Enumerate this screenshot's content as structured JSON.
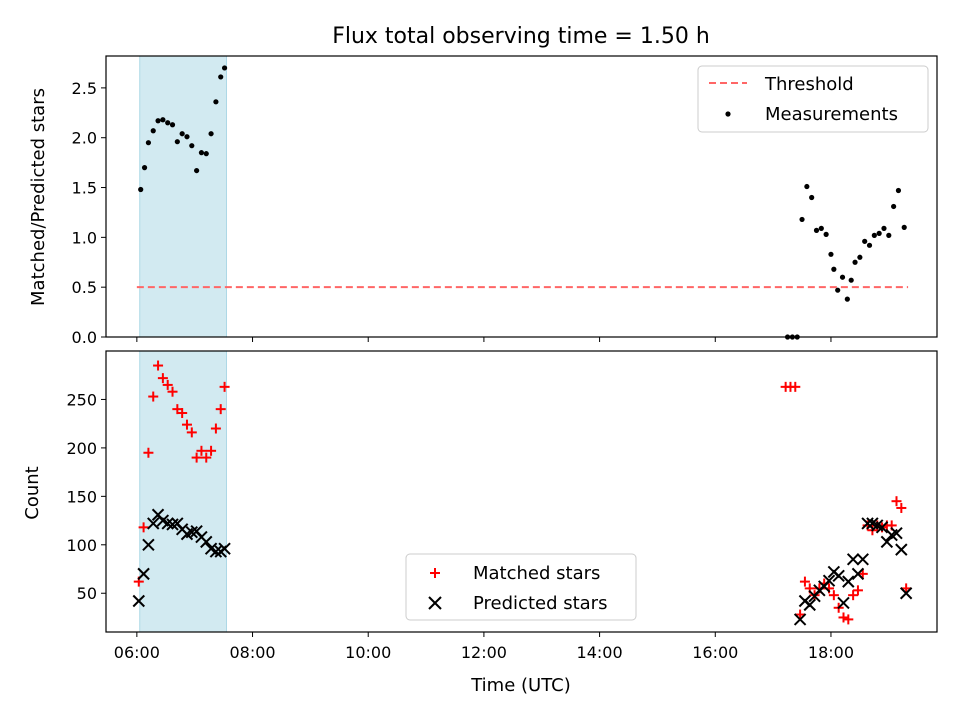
{
  "title": "Flux total observing time = 1.50 h",
  "colors": {
    "shade": "#add8e6",
    "threshold": "#ff6666",
    "measurements": "#000000",
    "matched": "#ff0000",
    "predicted": "#000000"
  },
  "chart_data": [
    {
      "type": "scatter",
      "ylabel": "Matched/Predicted stars",
      "ylim": [
        0,
        2.82
      ],
      "yticks": [
        "0.0",
        "0.5",
        "1.0",
        "1.5",
        "2.0",
        "2.5"
      ],
      "grid": false,
      "legend_position": "upper right",
      "shaded_interval": [
        "06:03",
        "07:33"
      ],
      "threshold": {
        "name": "Threshold",
        "value": 0.5,
        "x_range": [
          "06:00",
          "19:20"
        ]
      },
      "series": [
        {
          "name": "Measurements",
          "points": [
            [
              "06:04",
              1.48
            ],
            [
              "06:08",
              1.7
            ],
            [
              "06:12",
              1.95
            ],
            [
              "06:17",
              2.07
            ],
            [
              "06:22",
              2.17
            ],
            [
              "06:27",
              2.18
            ],
            [
              "06:32",
              2.15
            ],
            [
              "06:37",
              2.13
            ],
            [
              "06:42",
              1.96
            ],
            [
              "06:47",
              2.04
            ],
            [
              "06:52",
              2.01
            ],
            [
              "06:57",
              1.92
            ],
            [
              "07:02",
              1.67
            ],
            [
              "07:07",
              1.85
            ],
            [
              "07:12",
              1.84
            ],
            [
              "07:17",
              2.04
            ],
            [
              "07:22",
              2.36
            ],
            [
              "07:27",
              2.61
            ],
            [
              "07:31",
              2.7
            ],
            [
              "17:15",
              0.0
            ],
            [
              "17:20",
              0.0
            ],
            [
              "17:25",
              0.0
            ],
            [
              "17:30",
              1.18
            ],
            [
              "17:35",
              1.51
            ],
            [
              "17:40",
              1.4
            ],
            [
              "17:45",
              1.07
            ],
            [
              "17:50",
              1.09
            ],
            [
              "17:55",
              1.03
            ],
            [
              "18:00",
              0.83
            ],
            [
              "18:03",
              0.68
            ],
            [
              "18:07",
              0.47
            ],
            [
              "18:12",
              0.6
            ],
            [
              "18:17",
              0.38
            ],
            [
              "18:21",
              0.57
            ],
            [
              "18:25",
              0.75
            ],
            [
              "18:30",
              0.8
            ],
            [
              "18:35",
              0.96
            ],
            [
              "18:40",
              0.92
            ],
            [
              "18:45",
              1.02
            ],
            [
              "18:50",
              1.04
            ],
            [
              "18:55",
              1.09
            ],
            [
              "19:00",
              1.02
            ],
            [
              "19:05",
              1.31
            ],
            [
              "19:10",
              1.47
            ],
            [
              "19:16",
              1.1
            ]
          ]
        }
      ]
    },
    {
      "type": "scatter",
      "xlabel": "Time (UTC)",
      "ylabel": "Count",
      "xlim": [
        "05:28",
        "19:50"
      ],
      "xticks": [
        "06:00",
        "08:00",
        "10:00",
        "12:00",
        "14:00",
        "16:00",
        "18:00"
      ],
      "ylim": [
        10,
        300
      ],
      "yticks": [
        "50",
        "100",
        "150",
        "200",
        "250"
      ],
      "grid": false,
      "legend_position": "lower center",
      "shaded_interval": [
        "06:03",
        "07:33"
      ],
      "series": [
        {
          "name": "Matched stars",
          "marker": "plus",
          "points": [
            [
              "06:02",
              62
            ],
            [
              "06:07",
              118
            ],
            [
              "06:12",
              195
            ],
            [
              "06:17",
              253
            ],
            [
              "06:22",
              285
            ],
            [
              "06:27",
              272
            ],
            [
              "06:32",
              265
            ],
            [
              "06:37",
              258
            ],
            [
              "06:42",
              240
            ],
            [
              "06:47",
              236
            ],
            [
              "06:52",
              224
            ],
            [
              "06:57",
              216
            ],
            [
              "07:02",
              190
            ],
            [
              "07:07",
              197
            ],
            [
              "07:12",
              190
            ],
            [
              "07:17",
              197
            ],
            [
              "07:22",
              220
            ],
            [
              "07:27",
              240
            ],
            [
              "07:31",
              263
            ],
            [
              "17:13",
              263
            ],
            [
              "17:18",
              263
            ],
            [
              "17:23",
              263
            ],
            [
              "17:28",
              28
            ],
            [
              "17:33",
              62
            ],
            [
              "17:38",
              55
            ],
            [
              "17:43",
              48
            ],
            [
              "17:48",
              55
            ],
            [
              "17:53",
              60
            ],
            [
              "17:58",
              55
            ],
            [
              "18:03",
              48
            ],
            [
              "18:08",
              35
            ],
            [
              "18:13",
              25
            ],
            [
              "18:18",
              23
            ],
            [
              "18:23",
              48
            ],
            [
              "18:28",
              53
            ],
            [
              "18:33",
              70
            ],
            [
              "18:38",
              120
            ],
            [
              "18:43",
              115
            ],
            [
              "18:48",
              120
            ],
            [
              "18:53",
              118
            ],
            [
              "18:58",
              120
            ],
            [
              "19:03",
              120
            ],
            [
              "19:08",
              145
            ],
            [
              "19:13",
              138
            ],
            [
              "19:18",
              55
            ]
          ]
        },
        {
          "name": "Predicted stars",
          "marker": "x",
          "points": [
            [
              "06:02",
              42
            ],
            [
              "06:07",
              70
            ],
            [
              "06:12",
              100
            ],
            [
              "06:17",
              122
            ],
            [
              "06:22",
              131
            ],
            [
              "06:27",
              125
            ],
            [
              "06:32",
              122
            ],
            [
              "06:37",
              121
            ],
            [
              "06:42",
              122
            ],
            [
              "06:47",
              116
            ],
            [
              "06:52",
              111
            ],
            [
              "06:57",
              113
            ],
            [
              "07:02",
              114
            ],
            [
              "07:07",
              108
            ],
            [
              "07:12",
              103
            ],
            [
              "07:17",
              96
            ],
            [
              "07:22",
              93
            ],
            [
              "07:27",
              93
            ],
            [
              "07:31",
              96
            ],
            [
              "17:28",
              23
            ],
            [
              "17:33",
              42
            ],
            [
              "17:38",
              38
            ],
            [
              "17:43",
              47
            ],
            [
              "17:48",
              53
            ],
            [
              "17:53",
              57
            ],
            [
              "17:58",
              63
            ],
            [
              "18:03",
              72
            ],
            [
              "18:08",
              68
            ],
            [
              "18:13",
              40
            ],
            [
              "18:18",
              62
            ],
            [
              "18:23",
              85
            ],
            [
              "18:28",
              70
            ],
            [
              "18:33",
              85
            ],
            [
              "18:38",
              122
            ],
            [
              "18:43",
              122
            ],
            [
              "18:48",
              120
            ],
            [
              "18:53",
              118
            ],
            [
              "18:58",
              103
            ],
            [
              "19:03",
              110
            ],
            [
              "19:08",
              112
            ],
            [
              "19:13",
              95
            ],
            [
              "19:18",
              50
            ]
          ]
        }
      ]
    }
  ]
}
